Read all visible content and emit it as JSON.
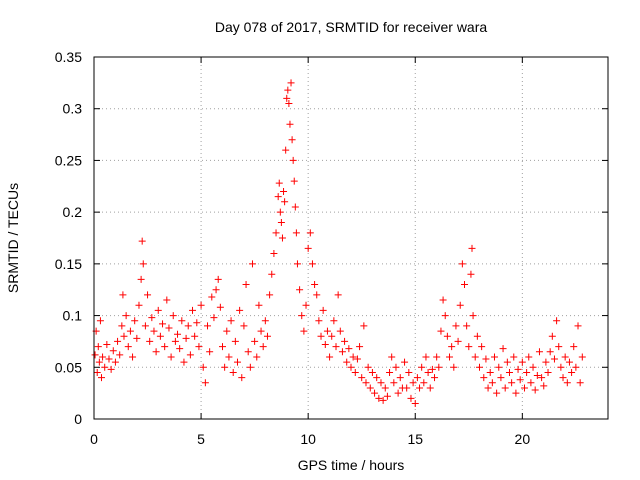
{
  "chart_data": {
    "type": "scatter",
    "title": "Day 078 of 2017, SRMTID for receiver wara",
    "xlabel": "GPS time / hours",
    "ylabel": "SRMTID / TECUs",
    "xlim": [
      0,
      24
    ],
    "ylim": [
      0,
      0.35
    ],
    "x_ticks": [
      0,
      5,
      10,
      15,
      20
    ],
    "x_tick_labels": [
      "0",
      "5",
      "10",
      "15",
      "20"
    ],
    "y_ticks": [
      0,
      0.05,
      0.1,
      0.15,
      0.2,
      0.25,
      0.3,
      0.35
    ],
    "y_tick_labels": [
      "0",
      "0.05",
      "0.1",
      "0.15",
      "0.2",
      "0.25",
      "0.3",
      "0.35"
    ],
    "grid": true,
    "marker": "plus",
    "color": "#ff0000",
    "series": [
      {
        "name": "SRMTID",
        "points": [
          [
            0.05,
            0.062
          ],
          [
            0.1,
            0.085
          ],
          [
            0.15,
            0.045
          ],
          [
            0.2,
            0.07
          ],
          [
            0.25,
            0.055
          ],
          [
            0.3,
            0.095
          ],
          [
            0.35,
            0.04
          ],
          [
            0.4,
            0.06
          ],
          [
            0.5,
            0.05
          ],
          [
            0.6,
            0.072
          ],
          [
            0.7,
            0.058
          ],
          [
            0.8,
            0.048
          ],
          [
            0.9,
            0.066
          ],
          [
            1.0,
            0.055
          ],
          [
            1.1,
            0.075
          ],
          [
            1.2,
            0.062
          ],
          [
            1.3,
            0.09
          ],
          [
            1.35,
            0.12
          ],
          [
            1.4,
            0.08
          ],
          [
            1.5,
            0.1
          ],
          [
            1.6,
            0.07
          ],
          [
            1.7,
            0.085
          ],
          [
            1.8,
            0.06
          ],
          [
            1.9,
            0.095
          ],
          [
            2.0,
            0.078
          ],
          [
            2.1,
            0.11
          ],
          [
            2.2,
            0.135
          ],
          [
            2.25,
            0.172
          ],
          [
            2.3,
            0.15
          ],
          [
            2.4,
            0.09
          ],
          [
            2.5,
            0.12
          ],
          [
            2.6,
            0.075
          ],
          [
            2.7,
            0.098
          ],
          [
            2.8,
            0.085
          ],
          [
            2.9,
            0.065
          ],
          [
            3.0,
            0.105
          ],
          [
            3.1,
            0.08
          ],
          [
            3.2,
            0.092
          ],
          [
            3.3,
            0.07
          ],
          [
            3.4,
            0.115
          ],
          [
            3.5,
            0.088
          ],
          [
            3.6,
            0.06
          ],
          [
            3.7,
            0.1
          ],
          [
            3.8,
            0.075
          ],
          [
            3.9,
            0.082
          ],
          [
            4.0,
            0.068
          ],
          [
            4.1,
            0.095
          ],
          [
            4.2,
            0.055
          ],
          [
            4.3,
            0.078
          ],
          [
            4.4,
            0.09
          ],
          [
            4.5,
            0.062
          ],
          [
            4.6,
            0.105
          ],
          [
            4.7,
            0.08
          ],
          [
            4.8,
            0.093
          ],
          [
            4.9,
            0.07
          ],
          [
            5.0,
            0.11
          ],
          [
            5.1,
            0.05
          ],
          [
            5.2,
            0.035
          ],
          [
            5.3,
            0.09
          ],
          [
            5.4,
            0.065
          ],
          [
            5.5,
            0.118
          ],
          [
            5.6,
            0.098
          ],
          [
            5.7,
            0.125
          ],
          [
            5.8,
            0.135
          ],
          [
            5.9,
            0.108
          ],
          [
            6.0,
            0.07
          ],
          [
            6.1,
            0.05
          ],
          [
            6.2,
            0.085
          ],
          [
            6.3,
            0.06
          ],
          [
            6.4,
            0.095
          ],
          [
            6.5,
            0.045
          ],
          [
            6.6,
            0.075
          ],
          [
            6.7,
            0.055
          ],
          [
            6.8,
            0.105
          ],
          [
            6.9,
            0.04
          ],
          [
            7.0,
            0.09
          ],
          [
            7.1,
            0.13
          ],
          [
            7.2,
            0.065
          ],
          [
            7.3,
            0.05
          ],
          [
            7.4,
            0.15
          ],
          [
            7.5,
            0.075
          ],
          [
            7.6,
            0.06
          ],
          [
            7.7,
            0.11
          ],
          [
            7.8,
            0.085
          ],
          [
            7.9,
            0.07
          ],
          [
            8.0,
            0.095
          ],
          [
            8.1,
            0.08
          ],
          [
            8.2,
            0.12
          ],
          [
            8.3,
            0.14
          ],
          [
            8.4,
            0.16
          ],
          [
            8.5,
            0.18
          ],
          [
            8.6,
            0.215
          ],
          [
            8.65,
            0.228
          ],
          [
            8.7,
            0.2
          ],
          [
            8.75,
            0.19
          ],
          [
            8.8,
            0.175
          ],
          [
            8.85,
            0.22
          ],
          [
            8.9,
            0.21
          ],
          [
            8.95,
            0.26
          ],
          [
            9.0,
            0.31
          ],
          [
            9.05,
            0.318
          ],
          [
            9.1,
            0.305
          ],
          [
            9.15,
            0.285
          ],
          [
            9.2,
            0.325
          ],
          [
            9.25,
            0.27
          ],
          [
            9.3,
            0.25
          ],
          [
            9.35,
            0.23
          ],
          [
            9.4,
            0.205
          ],
          [
            9.45,
            0.18
          ],
          [
            9.5,
            0.15
          ],
          [
            9.6,
            0.125
          ],
          [
            9.7,
            0.1
          ],
          [
            9.8,
            0.085
          ],
          [
            9.9,
            0.11
          ],
          [
            10.0,
            0.165
          ],
          [
            10.1,
            0.18
          ],
          [
            10.2,
            0.15
          ],
          [
            10.3,
            0.13
          ],
          [
            10.4,
            0.12
          ],
          [
            10.5,
            0.095
          ],
          [
            10.6,
            0.08
          ],
          [
            10.7,
            0.105
          ],
          [
            10.8,
            0.072
          ],
          [
            10.9,
            0.085
          ],
          [
            11.0,
            0.06
          ],
          [
            11.1,
            0.08
          ],
          [
            11.2,
            0.095
          ],
          [
            11.3,
            0.07
          ],
          [
            11.4,
            0.12
          ],
          [
            11.5,
            0.085
          ],
          [
            11.6,
            0.065
          ],
          [
            11.7,
            0.075
          ],
          [
            11.8,
            0.055
          ],
          [
            11.9,
            0.068
          ],
          [
            12.0,
            0.05
          ],
          [
            12.1,
            0.06
          ],
          [
            12.2,
            0.045
          ],
          [
            12.3,
            0.058
          ],
          [
            12.4,
            0.07
          ],
          [
            12.5,
            0.04
          ],
          [
            12.6,
            0.09
          ],
          [
            12.7,
            0.035
          ],
          [
            12.8,
            0.05
          ],
          [
            12.9,
            0.03
          ],
          [
            13.0,
            0.045
          ],
          [
            13.1,
            0.025
          ],
          [
            13.2,
            0.04
          ],
          [
            13.3,
            0.02
          ],
          [
            13.4,
            0.035
          ],
          [
            13.5,
            0.018
          ],
          [
            13.6,
            0.03
          ],
          [
            13.7,
            0.022
          ],
          [
            13.8,
            0.045
          ],
          [
            13.9,
            0.06
          ],
          [
            14.0,
            0.035
          ],
          [
            14.1,
            0.05
          ],
          [
            14.2,
            0.025
          ],
          [
            14.3,
            0.04
          ],
          [
            14.4,
            0.03
          ],
          [
            14.5,
            0.055
          ],
          [
            14.6,
            0.03
          ],
          [
            14.7,
            0.045
          ],
          [
            14.8,
            0.02
          ],
          [
            14.9,
            0.035
          ],
          [
            15.0,
            0.015
          ],
          [
            15.1,
            0.04
          ],
          [
            15.2,
            0.03
          ],
          [
            15.3,
            0.05
          ],
          [
            15.4,
            0.035
          ],
          [
            15.5,
            0.06
          ],
          [
            15.6,
            0.045
          ],
          [
            15.7,
            0.03
          ],
          [
            15.8,
            0.048
          ],
          [
            15.9,
            0.04
          ],
          [
            16.0,
            0.06
          ],
          [
            16.1,
            0.05
          ],
          [
            16.2,
            0.085
          ],
          [
            16.3,
            0.115
          ],
          [
            16.4,
            0.1
          ],
          [
            16.5,
            0.08
          ],
          [
            16.6,
            0.06
          ],
          [
            16.7,
            0.07
          ],
          [
            16.8,
            0.05
          ],
          [
            16.9,
            0.09
          ],
          [
            17.0,
            0.075
          ],
          [
            17.1,
            0.11
          ],
          [
            17.2,
            0.15
          ],
          [
            17.3,
            0.13
          ],
          [
            17.4,
            0.09
          ],
          [
            17.5,
            0.07
          ],
          [
            17.6,
            0.14
          ],
          [
            17.65,
            0.165
          ],
          [
            17.7,
            0.1
          ],
          [
            17.8,
            0.06
          ],
          [
            17.9,
            0.08
          ],
          [
            18.0,
            0.05
          ],
          [
            18.1,
            0.07
          ],
          [
            18.2,
            0.04
          ],
          [
            18.3,
            0.058
          ],
          [
            18.4,
            0.03
          ],
          [
            18.5,
            0.045
          ],
          [
            18.6,
            0.035
          ],
          [
            18.7,
            0.06
          ],
          [
            18.8,
            0.025
          ],
          [
            18.9,
            0.05
          ],
          [
            19.0,
            0.04
          ],
          [
            19.1,
            0.068
          ],
          [
            19.2,
            0.03
          ],
          [
            19.3,
            0.055
          ],
          [
            19.4,
            0.045
          ],
          [
            19.5,
            0.035
          ],
          [
            19.6,
            0.06
          ],
          [
            19.7,
            0.025
          ],
          [
            19.8,
            0.048
          ],
          [
            19.9,
            0.038
          ],
          [
            20.0,
            0.055
          ],
          [
            20.1,
            0.03
          ],
          [
            20.2,
            0.045
          ],
          [
            20.3,
            0.06
          ],
          [
            20.4,
            0.035
          ],
          [
            20.5,
            0.05
          ],
          [
            20.6,
            0.028
          ],
          [
            20.7,
            0.042
          ],
          [
            20.8,
            0.065
          ],
          [
            20.9,
            0.04
          ],
          [
            21.0,
            0.032
          ],
          [
            21.1,
            0.055
          ],
          [
            21.2,
            0.045
          ],
          [
            21.3,
            0.065
          ],
          [
            21.4,
            0.08
          ],
          [
            21.5,
            0.058
          ],
          [
            21.6,
            0.095
          ],
          [
            21.7,
            0.07
          ],
          [
            21.8,
            0.05
          ],
          [
            21.9,
            0.04
          ],
          [
            22.0,
            0.06
          ],
          [
            22.1,
            0.035
          ],
          [
            22.2,
            0.055
          ],
          [
            22.3,
            0.045
          ],
          [
            22.4,
            0.07
          ],
          [
            22.5,
            0.05
          ],
          [
            22.6,
            0.09
          ],
          [
            22.7,
            0.035
          ],
          [
            22.8,
            0.06
          ]
        ]
      }
    ]
  }
}
